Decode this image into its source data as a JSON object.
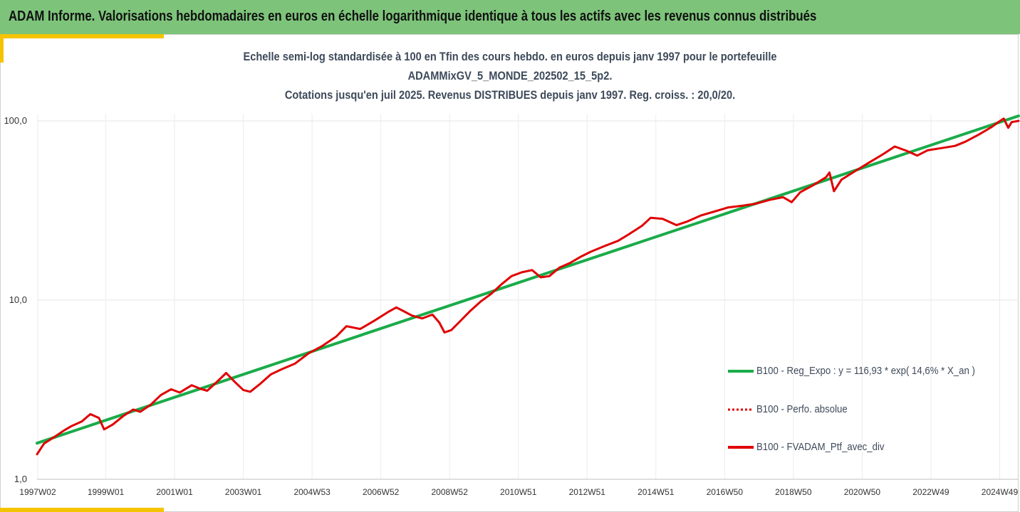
{
  "banner": {
    "title": "ADAM Informe. Valorisations hebdomadaires en euros en échelle logarithmique identique à tous les actifs avec les revenus connus distribués"
  },
  "colors": {
    "banner_bg": "#7dc47a",
    "accent": "#f5c400",
    "green_series": "#1aab4a",
    "red_series": "#e00000"
  },
  "chart_data": {
    "type": "line",
    "title_lines": [
      "Echelle semi-log standardisée à 100 en Tfin des cours hebdo.  en euros depuis janv 1997 pour le portefeuille",
      "ADAMMixGV_5_MONDE_202502_15_5p2.",
      "Cotations  jusqu'en juil 2025. Revenus DISTRIBUES depuis janv 1997. Reg. croiss. : 20,0/20."
    ],
    "y_scale": "log",
    "ylim": [
      1,
      100
    ],
    "y_ticks": [
      {
        "value": 1,
        "label": "1,0"
      },
      {
        "value": 10,
        "label": "10,0"
      },
      {
        "value": 100,
        "label": "100,0"
      }
    ],
    "xlim": [
      1997.0,
      2025.55
    ],
    "x_ticks": [
      {
        "x": 1997.02,
        "label": "1997W02"
      },
      {
        "x": 1999.0,
        "label": "1999W01"
      },
      {
        "x": 2001.0,
        "label": "2001W01"
      },
      {
        "x": 2003.0,
        "label": "2003W01"
      },
      {
        "x": 2005.0,
        "label": "2004W53"
      },
      {
        "x": 2007.0,
        "label": "2006W52"
      },
      {
        "x": 2009.0,
        "label": "2008W52"
      },
      {
        "x": 2011.0,
        "label": "2010W51"
      },
      {
        "x": 2013.0,
        "label": "2012W51"
      },
      {
        "x": 2015.0,
        "label": "2014W51"
      },
      {
        "x": 2017.0,
        "label": "2016W50"
      },
      {
        "x": 2019.0,
        "label": "2018W50"
      },
      {
        "x": 2021.0,
        "label": "2020W50"
      },
      {
        "x": 2023.0,
        "label": "2022W49"
      },
      {
        "x": 2025.0,
        "label": "2024W49"
      }
    ],
    "grid": "vertical",
    "legend_position": "right",
    "series": [
      {
        "name": "B100 - Reg_Expo : y = 116,93 * exp( 14,6% *  X_an )",
        "color": "#1aab4a",
        "style": "solid",
        "points": [
          [
            1997.0,
            1.59
          ],
          [
            2025.55,
            106.6
          ]
        ]
      },
      {
        "name": "B100 - Perfo. absolue",
        "color": "#e00000",
        "style": "dotted",
        "points": []
      },
      {
        "name": "B100 - FVADAM_Ptf_avec_div",
        "color": "#e00000",
        "style": "solid",
        "points": [
          [
            1997.0,
            1.38
          ],
          [
            1997.2,
            1.58
          ],
          [
            1997.5,
            1.72
          ],
          [
            1997.8,
            1.88
          ],
          [
            1998.0,
            1.98
          ],
          [
            1998.3,
            2.1
          ],
          [
            1998.55,
            2.31
          ],
          [
            1998.8,
            2.2
          ],
          [
            1998.95,
            1.9
          ],
          [
            1999.2,
            2.02
          ],
          [
            1999.5,
            2.25
          ],
          [
            1999.8,
            2.45
          ],
          [
            2000.0,
            2.38
          ],
          [
            2000.3,
            2.6
          ],
          [
            2000.6,
            2.95
          ],
          [
            2000.9,
            3.18
          ],
          [
            2001.15,
            3.05
          ],
          [
            2001.5,
            3.35
          ],
          [
            2001.75,
            3.2
          ],
          [
            2001.95,
            3.12
          ],
          [
            2002.2,
            3.45
          ],
          [
            2002.5,
            3.92
          ],
          [
            2002.75,
            3.5
          ],
          [
            2003.0,
            3.15
          ],
          [
            2003.2,
            3.08
          ],
          [
            2003.5,
            3.42
          ],
          [
            2003.8,
            3.85
          ],
          [
            2004.1,
            4.1
          ],
          [
            2004.5,
            4.42
          ],
          [
            2004.9,
            5.05
          ],
          [
            2005.3,
            5.55
          ],
          [
            2005.7,
            6.25
          ],
          [
            2006.0,
            7.15
          ],
          [
            2006.4,
            6.9
          ],
          [
            2006.8,
            7.65
          ],
          [
            2007.2,
            8.55
          ],
          [
            2007.45,
            9.1
          ],
          [
            2007.7,
            8.6
          ],
          [
            2007.9,
            8.2
          ],
          [
            2008.2,
            7.9
          ],
          [
            2008.5,
            8.3
          ],
          [
            2008.7,
            7.5
          ],
          [
            2008.85,
            6.6
          ],
          [
            2009.05,
            6.8
          ],
          [
            2009.3,
            7.6
          ],
          [
            2009.6,
            8.7
          ],
          [
            2009.9,
            9.8
          ],
          [
            2010.2,
            10.8
          ],
          [
            2010.5,
            12.2
          ],
          [
            2010.8,
            13.6
          ],
          [
            2011.1,
            14.3
          ],
          [
            2011.4,
            14.7
          ],
          [
            2011.65,
            13.4
          ],
          [
            2011.9,
            13.6
          ],
          [
            2012.2,
            15.2
          ],
          [
            2012.5,
            16.1
          ],
          [
            2012.8,
            17.4
          ],
          [
            2013.1,
            18.6
          ],
          [
            2013.5,
            20.0
          ],
          [
            2013.9,
            21.4
          ],
          [
            2014.2,
            23.2
          ],
          [
            2014.6,
            26.0
          ],
          [
            2014.85,
            28.8
          ],
          [
            2015.2,
            28.4
          ],
          [
            2015.6,
            26.2
          ],
          [
            2015.9,
            27.4
          ],
          [
            2016.3,
            29.6
          ],
          [
            2016.7,
            31.2
          ],
          [
            2017.1,
            32.9
          ],
          [
            2017.5,
            33.6
          ],
          [
            2017.9,
            34.5
          ],
          [
            2018.3,
            36.2
          ],
          [
            2018.7,
            37.5
          ],
          [
            2018.95,
            35.2
          ],
          [
            2019.2,
            40.0
          ],
          [
            2019.6,
            44.0
          ],
          [
            2019.95,
            48.5
          ],
          [
            2020.05,
            51.5
          ],
          [
            2020.18,
            40.5
          ],
          [
            2020.4,
            47.0
          ],
          [
            2020.8,
            52.5
          ],
          [
            2021.2,
            58.5
          ],
          [
            2021.6,
            65.0
          ],
          [
            2021.95,
            72.0
          ],
          [
            2022.3,
            68.0
          ],
          [
            2022.6,
            64.0
          ],
          [
            2022.9,
            68.5
          ],
          [
            2023.3,
            70.5
          ],
          [
            2023.7,
            72.5
          ],
          [
            2024.0,
            76.5
          ],
          [
            2024.4,
            84.0
          ],
          [
            2024.75,
            92.0
          ],
          [
            2025.0,
            99.5
          ],
          [
            2025.12,
            103.0
          ],
          [
            2025.25,
            91.5
          ],
          [
            2025.35,
            98.5
          ],
          [
            2025.55,
            100.0
          ]
        ]
      }
    ]
  }
}
